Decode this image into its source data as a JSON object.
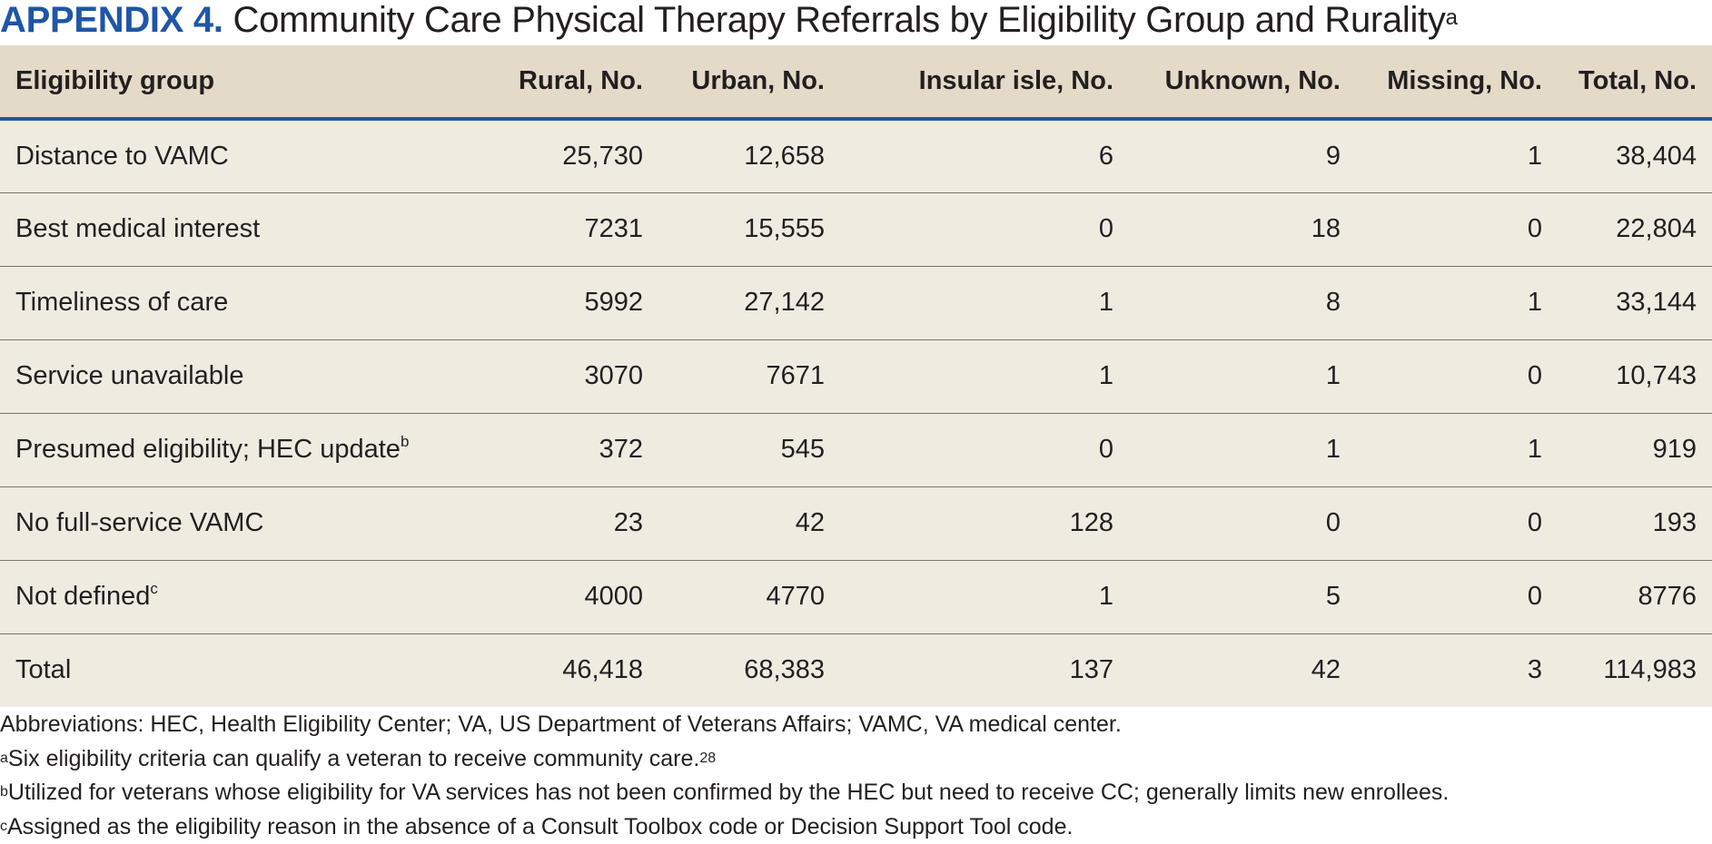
{
  "title": {
    "label": "APPENDIX 4.",
    "text": "Community Care Physical Therapy Referrals by Eligibility Group and Rurality",
    "footnote_mark": "a"
  },
  "table": {
    "headers": [
      "Eligibility group",
      "Rural, No.",
      "Urban, No.",
      "Insular isle, No.",
      "Unknown, No.",
      "Missing, No.",
      "Total, No."
    ],
    "rows": [
      {
        "label": "Distance to VAMC",
        "mark": "",
        "values": [
          "25,730",
          "12,658",
          "6",
          "9",
          "1",
          "38,404"
        ]
      },
      {
        "label": "Best medical interest",
        "mark": "",
        "values": [
          "7231",
          "15,555",
          "0",
          "18",
          "0",
          "22,804"
        ]
      },
      {
        "label": "Timeliness of care",
        "mark": "",
        "values": [
          "5992",
          "27,142",
          "1",
          "8",
          "1",
          "33,144"
        ]
      },
      {
        "label": "Service unavailable",
        "mark": "",
        "values": [
          "3070",
          "7671",
          "1",
          "1",
          "0",
          "10,743"
        ]
      },
      {
        "label": "Presumed eligibility; HEC update",
        "mark": "b",
        "values": [
          "372",
          "545",
          "0",
          "1",
          "1",
          "919"
        ]
      },
      {
        "label": "No full-service VAMC",
        "mark": "",
        "values": [
          "23",
          "42",
          "128",
          "0",
          "0",
          "193"
        ]
      },
      {
        "label": "Not defined",
        "mark": "c",
        "values": [
          "4000",
          "4770",
          "1",
          "5",
          "0",
          "8776"
        ]
      },
      {
        "label": "Total",
        "mark": "",
        "values": [
          "46,418",
          "68,383",
          "137",
          "42",
          "3",
          "114,983"
        ]
      }
    ]
  },
  "notes": {
    "abbreviations": "Abbreviations: HEC, Health Eligibility Center; VA, US Department of Veterans Affairs; VAMC, VA medical center.",
    "a": {
      "mark": "a",
      "text": "Six eligibility criteria can qualify a veteran to receive community care.",
      "ref": "28"
    },
    "b": {
      "mark": "b",
      "text": "Utilized for veterans whose eligibility for VA services has not been confirmed by the HEC but need to receive CC; generally limits new enrollees."
    },
    "c": {
      "mark": "c",
      "text": "Assigned as the eligibility reason in the absence of a Consult Toolbox code or Decision Support Tool code."
    }
  },
  "colors": {
    "accent": "#1f56a7",
    "header_bg": "#e3dac8",
    "row_bg": "#f0ebe1",
    "row_rule": "#7a7468"
  }
}
